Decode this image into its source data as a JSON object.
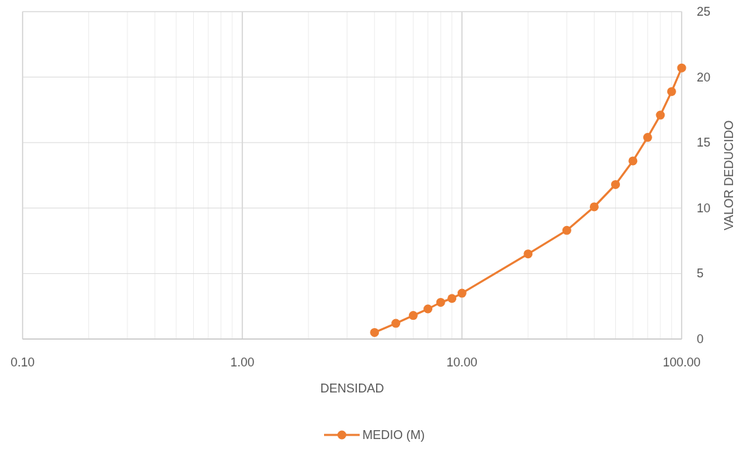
{
  "chart_data": {
    "type": "line",
    "xlabel": "DENSIDAD",
    "ylabel": "VALOR DEDUCIDO",
    "log": "x",
    "grid": true,
    "legend": "bottom",
    "marker": "circle",
    "line_style": "solid",
    "xlim": [
      0.1,
      100
    ],
    "ylim": [
      0,
      25
    ],
    "yticks": [
      0,
      5,
      10,
      15,
      20,
      25
    ],
    "xticks": [
      {
        "value": 0.1,
        "label": "0.10"
      },
      {
        "value": 0.2,
        "label": null
      },
      {
        "value": 0.3,
        "label": null
      },
      {
        "value": 0.4,
        "label": null
      },
      {
        "value": 0.5,
        "label": null
      },
      {
        "value": 0.6,
        "label": null
      },
      {
        "value": 0.7,
        "label": null
      },
      {
        "value": 0.8,
        "label": null
      },
      {
        "value": 0.9,
        "label": null
      },
      {
        "value": 1,
        "label": "1.00"
      },
      {
        "value": 2,
        "label": null
      },
      {
        "value": 3,
        "label": null
      },
      {
        "value": 4,
        "label": null
      },
      {
        "value": 5,
        "label": null
      },
      {
        "value": 6,
        "label": null
      },
      {
        "value": 7,
        "label": null
      },
      {
        "value": 8,
        "label": null
      },
      {
        "value": 9,
        "label": null
      },
      {
        "value": 10,
        "label": "10.00"
      },
      {
        "value": 20,
        "label": null
      },
      {
        "value": 30,
        "label": null
      },
      {
        "value": 40,
        "label": null
      },
      {
        "value": 50,
        "label": null
      },
      {
        "value": 60,
        "label": null
      },
      {
        "value": 70,
        "label": null
      },
      {
        "value": 80,
        "label": null
      },
      {
        "value": 90,
        "label": null
      },
      {
        "value": 100,
        "label": "100.00"
      }
    ],
    "series": [
      {
        "name": "MEDIO (M)",
        "color": "#ed7d31",
        "x": [
          4,
          5,
          6,
          7,
          8,
          9,
          10,
          20,
          30,
          40,
          50,
          60,
          70,
          80,
          90,
          100
        ],
        "values": [
          0.5,
          1.2,
          1.8,
          2.3,
          2.8,
          3.1,
          3.5,
          6.5,
          8.3,
          10.1,
          11.8,
          13.6,
          15.4,
          17.1,
          18.9,
          20.7
        ]
      }
    ]
  }
}
